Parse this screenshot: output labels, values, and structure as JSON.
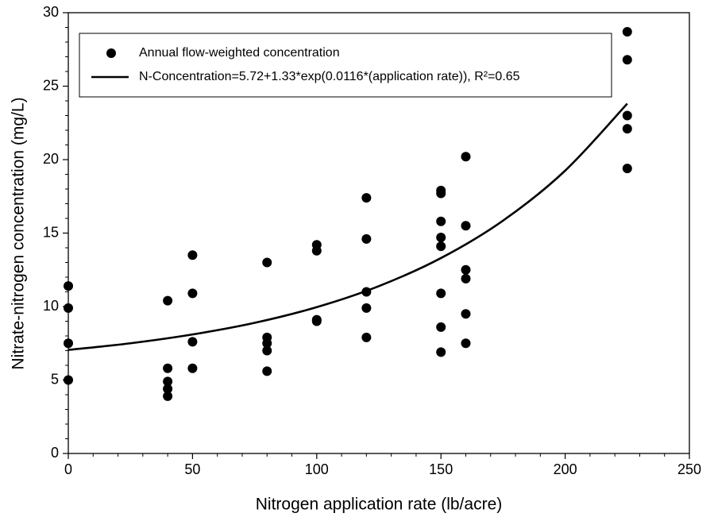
{
  "chart_data": {
    "type": "scatter",
    "xlabel": "Nitrogen application rate (lb/acre)",
    "ylabel": "Nitrate-nitrogen concentration (mg/L)",
    "xlim": [
      0,
      250
    ],
    "ylim": [
      0,
      30
    ],
    "xticks": [
      0,
      50,
      100,
      150,
      200,
      250
    ],
    "yticks": [
      0,
      5,
      10,
      15,
      20,
      25,
      30
    ],
    "xminorticks": [
      10,
      20,
      30,
      40,
      60,
      70,
      80,
      90,
      110,
      120,
      130,
      140,
      160,
      170,
      180,
      190,
      210,
      220,
      230,
      240
    ],
    "yminorticks": [
      1,
      2,
      3,
      4,
      6,
      7,
      8,
      9,
      11,
      12,
      13,
      14,
      16,
      17,
      18,
      19,
      21,
      22,
      23,
      24,
      26,
      27,
      28,
      29
    ],
    "legend": "upper left",
    "series": [
      {
        "name": "Annual flow-weighted concentration",
        "type": "scatter",
        "color": "#000000",
        "x": [
          0,
          0,
          0,
          0,
          40,
          40,
          40,
          40,
          40,
          50,
          50,
          50,
          50,
          80,
          80,
          80,
          80,
          80,
          100,
          100,
          100,
          100,
          120,
          120,
          120,
          120,
          120,
          150,
          150,
          150,
          150,
          150,
          150,
          150,
          150,
          160,
          160,
          160,
          160,
          160,
          160,
          225,
          225,
          225,
          225,
          225
        ],
        "values": [
          11.4,
          9.9,
          7.5,
          5.0,
          10.4,
          5.8,
          4.9,
          4.4,
          3.9,
          13.5,
          10.9,
          7.6,
          5.8,
          13.0,
          7.9,
          7.5,
          7.0,
          5.6,
          14.2,
          13.8,
          9.1,
          9.0,
          17.4,
          14.6,
          11.0,
          9.9,
          7.9,
          17.9,
          17.7,
          15.8,
          14.7,
          14.1,
          10.9,
          8.6,
          6.9,
          20.2,
          15.5,
          12.5,
          11.9,
          9.5,
          7.5,
          28.7,
          26.8,
          23.0,
          22.1,
          19.4
        ]
      },
      {
        "name": "N-Concentration=5.72+1.33*exp(0.0116*(application rate)), R²=0.65",
        "type": "line",
        "color": "#000000",
        "x": [
          0,
          25,
          50,
          75,
          100,
          125,
          150,
          175,
          200,
          225
        ],
        "values": [
          7.05,
          7.5,
          8.1,
          8.89,
          9.96,
          11.39,
          13.3,
          15.85,
          19.25,
          23.81
        ]
      }
    ]
  }
}
